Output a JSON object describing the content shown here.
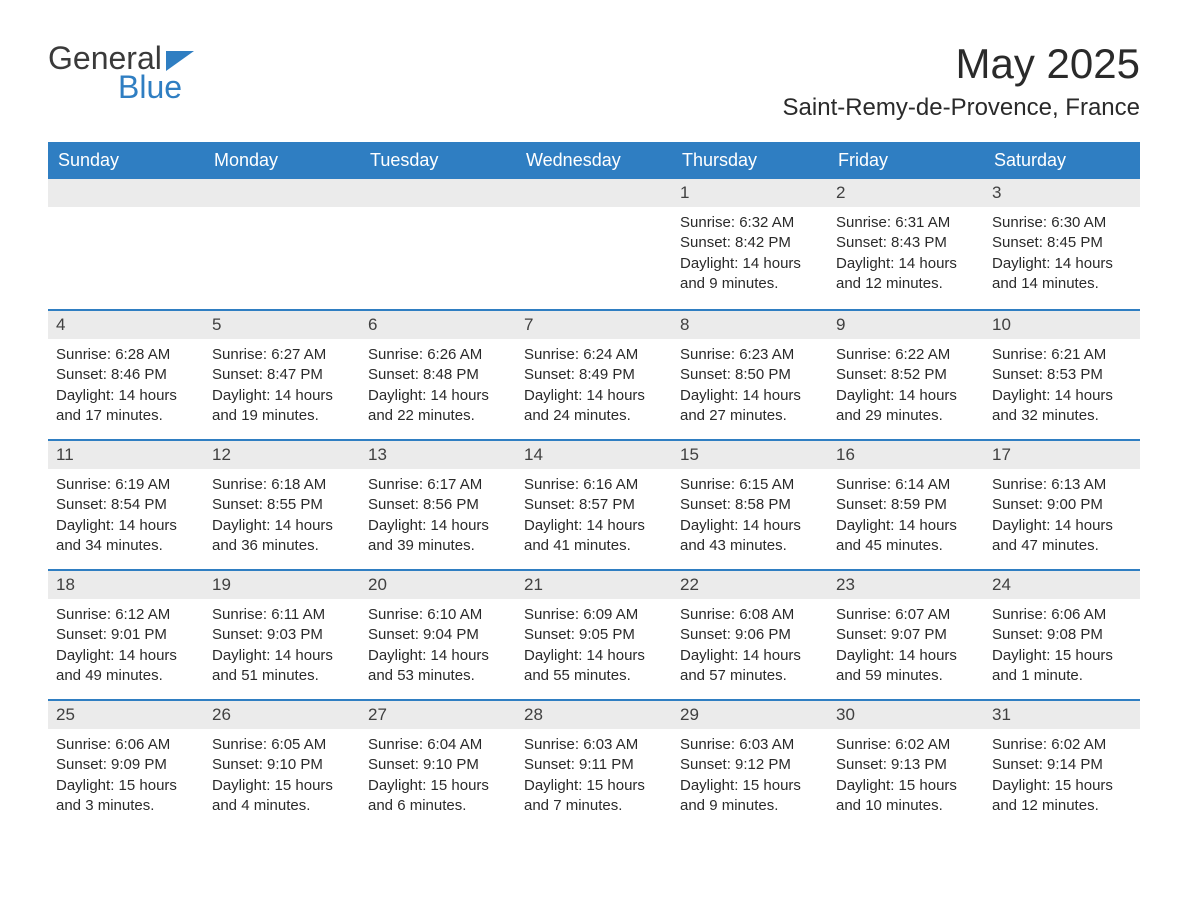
{
  "logo": {
    "text1": "General",
    "text2": "Blue"
  },
  "title": "May 2025",
  "location": "Saint-Remy-de-Provence, France",
  "colors": {
    "header_bg": "#2f7ec2",
    "header_text": "#ffffff",
    "day_header_bg": "#ebebeb",
    "day_border": "#2f7ec2",
    "body_text": "#2a2a2a",
    "page_bg": "#ffffff"
  },
  "columns": [
    "Sunday",
    "Monday",
    "Tuesday",
    "Wednesday",
    "Thursday",
    "Friday",
    "Saturday"
  ],
  "weeks": [
    [
      null,
      null,
      null,
      null,
      {
        "day": "1",
        "sunrise": "Sunrise: 6:32 AM",
        "sunset": "Sunset: 8:42 PM",
        "daylight1": "Daylight: 14 hours",
        "daylight2": "and 9 minutes."
      },
      {
        "day": "2",
        "sunrise": "Sunrise: 6:31 AM",
        "sunset": "Sunset: 8:43 PM",
        "daylight1": "Daylight: 14 hours",
        "daylight2": "and 12 minutes."
      },
      {
        "day": "3",
        "sunrise": "Sunrise: 6:30 AM",
        "sunset": "Sunset: 8:45 PM",
        "daylight1": "Daylight: 14 hours",
        "daylight2": "and 14 minutes."
      }
    ],
    [
      {
        "day": "4",
        "sunrise": "Sunrise: 6:28 AM",
        "sunset": "Sunset: 8:46 PM",
        "daylight1": "Daylight: 14 hours",
        "daylight2": "and 17 minutes."
      },
      {
        "day": "5",
        "sunrise": "Sunrise: 6:27 AM",
        "sunset": "Sunset: 8:47 PM",
        "daylight1": "Daylight: 14 hours",
        "daylight2": "and 19 minutes."
      },
      {
        "day": "6",
        "sunrise": "Sunrise: 6:26 AM",
        "sunset": "Sunset: 8:48 PM",
        "daylight1": "Daylight: 14 hours",
        "daylight2": "and 22 minutes."
      },
      {
        "day": "7",
        "sunrise": "Sunrise: 6:24 AM",
        "sunset": "Sunset: 8:49 PM",
        "daylight1": "Daylight: 14 hours",
        "daylight2": "and 24 minutes."
      },
      {
        "day": "8",
        "sunrise": "Sunrise: 6:23 AM",
        "sunset": "Sunset: 8:50 PM",
        "daylight1": "Daylight: 14 hours",
        "daylight2": "and 27 minutes."
      },
      {
        "day": "9",
        "sunrise": "Sunrise: 6:22 AM",
        "sunset": "Sunset: 8:52 PM",
        "daylight1": "Daylight: 14 hours",
        "daylight2": "and 29 minutes."
      },
      {
        "day": "10",
        "sunrise": "Sunrise: 6:21 AM",
        "sunset": "Sunset: 8:53 PM",
        "daylight1": "Daylight: 14 hours",
        "daylight2": "and 32 minutes."
      }
    ],
    [
      {
        "day": "11",
        "sunrise": "Sunrise: 6:19 AM",
        "sunset": "Sunset: 8:54 PM",
        "daylight1": "Daylight: 14 hours",
        "daylight2": "and 34 minutes."
      },
      {
        "day": "12",
        "sunrise": "Sunrise: 6:18 AM",
        "sunset": "Sunset: 8:55 PM",
        "daylight1": "Daylight: 14 hours",
        "daylight2": "and 36 minutes."
      },
      {
        "day": "13",
        "sunrise": "Sunrise: 6:17 AM",
        "sunset": "Sunset: 8:56 PM",
        "daylight1": "Daylight: 14 hours",
        "daylight2": "and 39 minutes."
      },
      {
        "day": "14",
        "sunrise": "Sunrise: 6:16 AM",
        "sunset": "Sunset: 8:57 PM",
        "daylight1": "Daylight: 14 hours",
        "daylight2": "and 41 minutes."
      },
      {
        "day": "15",
        "sunrise": "Sunrise: 6:15 AM",
        "sunset": "Sunset: 8:58 PM",
        "daylight1": "Daylight: 14 hours",
        "daylight2": "and 43 minutes."
      },
      {
        "day": "16",
        "sunrise": "Sunrise: 6:14 AM",
        "sunset": "Sunset: 8:59 PM",
        "daylight1": "Daylight: 14 hours",
        "daylight2": "and 45 minutes."
      },
      {
        "day": "17",
        "sunrise": "Sunrise: 6:13 AM",
        "sunset": "Sunset: 9:00 PM",
        "daylight1": "Daylight: 14 hours",
        "daylight2": "and 47 minutes."
      }
    ],
    [
      {
        "day": "18",
        "sunrise": "Sunrise: 6:12 AM",
        "sunset": "Sunset: 9:01 PM",
        "daylight1": "Daylight: 14 hours",
        "daylight2": "and 49 minutes."
      },
      {
        "day": "19",
        "sunrise": "Sunrise: 6:11 AM",
        "sunset": "Sunset: 9:03 PM",
        "daylight1": "Daylight: 14 hours",
        "daylight2": "and 51 minutes."
      },
      {
        "day": "20",
        "sunrise": "Sunrise: 6:10 AM",
        "sunset": "Sunset: 9:04 PM",
        "daylight1": "Daylight: 14 hours",
        "daylight2": "and 53 minutes."
      },
      {
        "day": "21",
        "sunrise": "Sunrise: 6:09 AM",
        "sunset": "Sunset: 9:05 PM",
        "daylight1": "Daylight: 14 hours",
        "daylight2": "and 55 minutes."
      },
      {
        "day": "22",
        "sunrise": "Sunrise: 6:08 AM",
        "sunset": "Sunset: 9:06 PM",
        "daylight1": "Daylight: 14 hours",
        "daylight2": "and 57 minutes."
      },
      {
        "day": "23",
        "sunrise": "Sunrise: 6:07 AM",
        "sunset": "Sunset: 9:07 PM",
        "daylight1": "Daylight: 14 hours",
        "daylight2": "and 59 minutes."
      },
      {
        "day": "24",
        "sunrise": "Sunrise: 6:06 AM",
        "sunset": "Sunset: 9:08 PM",
        "daylight1": "Daylight: 15 hours",
        "daylight2": "and 1 minute."
      }
    ],
    [
      {
        "day": "25",
        "sunrise": "Sunrise: 6:06 AM",
        "sunset": "Sunset: 9:09 PM",
        "daylight1": "Daylight: 15 hours",
        "daylight2": "and 3 minutes."
      },
      {
        "day": "26",
        "sunrise": "Sunrise: 6:05 AM",
        "sunset": "Sunset: 9:10 PM",
        "daylight1": "Daylight: 15 hours",
        "daylight2": "and 4 minutes."
      },
      {
        "day": "27",
        "sunrise": "Sunrise: 6:04 AM",
        "sunset": "Sunset: 9:10 PM",
        "daylight1": "Daylight: 15 hours",
        "daylight2": "and 6 minutes."
      },
      {
        "day": "28",
        "sunrise": "Sunrise: 6:03 AM",
        "sunset": "Sunset: 9:11 PM",
        "daylight1": "Daylight: 15 hours",
        "daylight2": "and 7 minutes."
      },
      {
        "day": "29",
        "sunrise": "Sunrise: 6:03 AM",
        "sunset": "Sunset: 9:12 PM",
        "daylight1": "Daylight: 15 hours",
        "daylight2": "and 9 minutes."
      },
      {
        "day": "30",
        "sunrise": "Sunrise: 6:02 AM",
        "sunset": "Sunset: 9:13 PM",
        "daylight1": "Daylight: 15 hours",
        "daylight2": "and 10 minutes."
      },
      {
        "day": "31",
        "sunrise": "Sunrise: 6:02 AM",
        "sunset": "Sunset: 9:14 PM",
        "daylight1": "Daylight: 15 hours",
        "daylight2": "and 12 minutes."
      }
    ]
  ]
}
